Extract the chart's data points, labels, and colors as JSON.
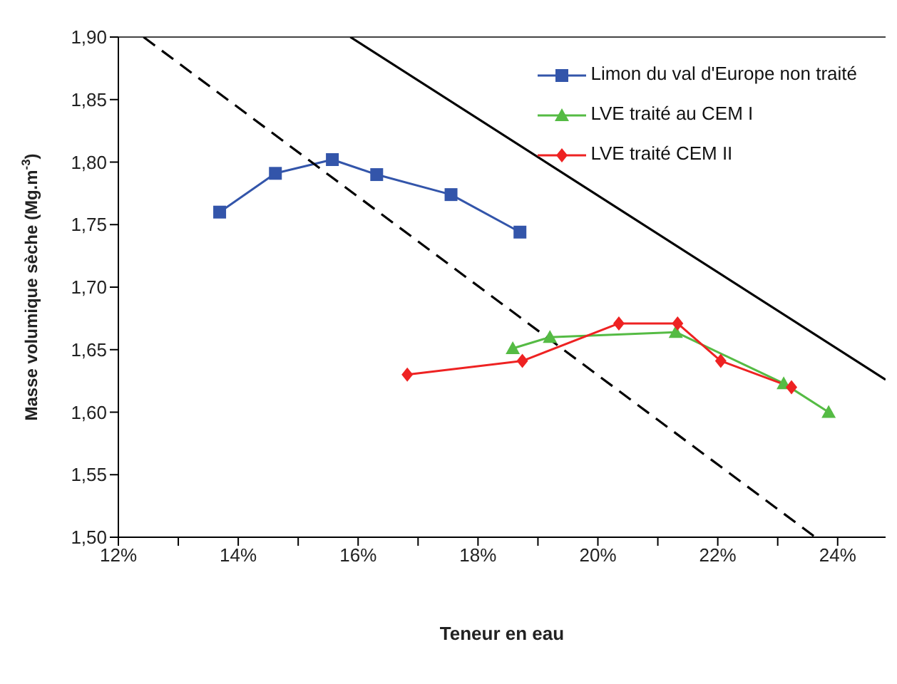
{
  "chart_data": {
    "type": "line",
    "xlabel": "Teneur en eau",
    "ylabel": "Masse volumique sèche (Mg.m$^{-3}$)",
    "xlim": [
      12,
      24.8
    ],
    "xticks": [
      {
        "value": 12,
        "label": "12%"
      },
      {
        "value": 13,
        "label": null
      },
      {
        "value": 14,
        "label": "14%"
      },
      {
        "value": 15,
        "label": null
      },
      {
        "value": 16,
        "label": "16%"
      },
      {
        "value": 17,
        "label": null
      },
      {
        "value": 18,
        "label": "18%"
      },
      {
        "value": 19,
        "label": null
      },
      {
        "value": 20,
        "label": "20%"
      },
      {
        "value": 21,
        "label": null
      },
      {
        "value": 22,
        "label": "22%"
      },
      {
        "value": 23,
        "label": null
      },
      {
        "value": 24,
        "label": "24%"
      }
    ],
    "ylim": [
      1.5,
      1.9
    ],
    "yticks": [
      {
        "value": 1.5,
        "label": "1,50"
      },
      {
        "value": 1.55,
        "label": "1,55"
      },
      {
        "value": 1.6,
        "label": "1,60"
      },
      {
        "value": 1.65,
        "label": "1,65"
      },
      {
        "value": 1.7,
        "label": "1,70"
      },
      {
        "value": 1.75,
        "label": "1,75"
      },
      {
        "value": 1.8,
        "label": "1,80"
      },
      {
        "value": 1.85,
        "label": "1,85"
      },
      {
        "value": 1.9,
        "label": "1,90"
      }
    ],
    "legend": "top right",
    "grid": false,
    "series": [
      {
        "name": "Limon du val d'Europe non traité",
        "color": "#3355aa",
        "marker": "square",
        "x": [
          13.69,
          14.62,
          15.57,
          16.31,
          17.55,
          18.7
        ],
        "values": [
          1.76,
          1.791,
          1.802,
          1.79,
          1.774,
          1.744
        ]
      },
      {
        "name": "LVE traité au CEM I",
        "color": "#55bb44",
        "marker": "triangle",
        "x": [
          18.58,
          19.2,
          21.3,
          23.1,
          23.85
        ],
        "values": [
          1.651,
          1.66,
          1.664,
          1.623,
          1.6
        ]
      },
      {
        "name": "LVE traité CEM II",
        "color": "#ee2222",
        "marker": "diamond",
        "x": [
          16.82,
          18.74,
          20.35,
          21.33,
          22.05,
          23.23
        ],
        "values": [
          1.63,
          1.641,
          1.671,
          1.671,
          1.641,
          1.62
        ]
      },
      {
        "color": "#000000",
        "marker": "none",
        "line_style": "solid",
        "x": [
          15.87,
          24.8
        ],
        "values": [
          1.9,
          1.626
        ]
      },
      {
        "color": "#000000",
        "marker": "none",
        "line_style": "dashed",
        "x": [
          12.42,
          23.63
        ],
        "values": [
          1.9,
          1.5
        ]
      }
    ]
  }
}
